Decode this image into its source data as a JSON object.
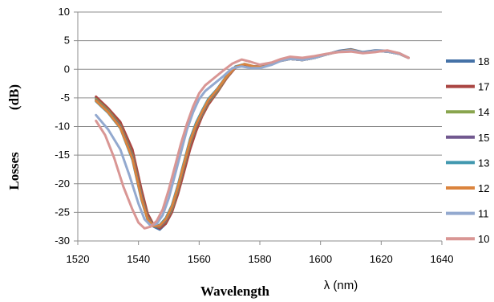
{
  "chart_data": {
    "type": "line",
    "title": "",
    "xlabel_main": "Wavelength",
    "xlabel_unit": "λ (nm)",
    "ylabel_main": "Losses",
    "ylabel_unit": "(dB)",
    "xlim": [
      1520,
      1640
    ],
    "ylim": [
      -30,
      10
    ],
    "x_ticks": [
      1520,
      1540,
      1560,
      1580,
      1600,
      1620,
      1640
    ],
    "y_ticks": [
      10,
      5,
      0,
      -5,
      -10,
      -15,
      -20,
      -25,
      -30
    ],
    "grid": "horizontal",
    "legend_position": "right",
    "series": [
      {
        "name": "18",
        "color": "#4572a7",
        "x": [
          1526,
          1530,
          1534,
          1538,
          1541,
          1543,
          1545,
          1547,
          1549,
          1551,
          1553,
          1555,
          1557,
          1559,
          1561,
          1563,
          1566,
          1569,
          1572,
          1575,
          1578,
          1581,
          1584,
          1587,
          1590,
          1594,
          1598,
          1602,
          1606,
          1610,
          1614,
          1618,
          1622,
          1626,
          1629
        ],
        "y": [
          -5.0,
          -7.0,
          -9.5,
          -14.5,
          -21.5,
          -25.5,
          -27.5,
          -28.0,
          -27.0,
          -25.0,
          -21.5,
          -17.5,
          -13.5,
          -10.5,
          -8.0,
          -6.0,
          -4.0,
          -1.5,
          0.3,
          0.8,
          0.5,
          0.5,
          1.0,
          1.5,
          1.8,
          1.6,
          2.0,
          2.6,
          3.2,
          3.5,
          3.0,
          3.3,
          3.2,
          2.8,
          2.0
        ]
      },
      {
        "name": "17",
        "color": "#aa4643",
        "x": [
          1526,
          1530,
          1534,
          1538,
          1541,
          1543,
          1545,
          1547,
          1549,
          1551,
          1553,
          1555,
          1557,
          1559,
          1561,
          1563,
          1566,
          1569,
          1572,
          1575,
          1578,
          1581,
          1584,
          1587,
          1590,
          1594,
          1598,
          1602,
          1606,
          1610,
          1614,
          1618,
          1622,
          1626,
          1629
        ],
        "y": [
          -4.8,
          -6.8,
          -9.2,
          -14.0,
          -21.0,
          -25.2,
          -27.2,
          -27.8,
          -27.0,
          -25.0,
          -21.8,
          -18.0,
          -14.0,
          -10.8,
          -8.2,
          -6.2,
          -4.0,
          -1.6,
          0.3,
          0.8,
          0.5,
          0.5,
          1.0,
          1.5,
          1.8,
          1.6,
          2.0,
          2.6,
          3.1,
          3.4,
          2.9,
          3.2,
          3.1,
          2.7,
          2.0
        ]
      },
      {
        "name": "14",
        "color": "#89a54e",
        "x": [
          1526,
          1530,
          1534,
          1538,
          1541,
          1543,
          1545,
          1547,
          1549,
          1551,
          1553,
          1555,
          1557,
          1559,
          1561,
          1563,
          1566,
          1569,
          1572,
          1575,
          1578,
          1581,
          1584,
          1587,
          1590,
          1594,
          1598,
          1602,
          1606,
          1610,
          1614,
          1618,
          1622,
          1626,
          1629
        ],
        "y": [
          -5.2,
          -7.2,
          -9.8,
          -15.0,
          -22.0,
          -25.8,
          -27.4,
          -27.5,
          -26.5,
          -24.5,
          -21.0,
          -17.0,
          -13.0,
          -10.0,
          -7.8,
          -5.8,
          -3.8,
          -1.4,
          0.4,
          0.9,
          0.5,
          0.4,
          1.0,
          1.5,
          1.8,
          1.6,
          2.0,
          2.6,
          3.1,
          3.4,
          2.9,
          3.2,
          3.1,
          2.7,
          2.0
        ]
      },
      {
        "name": "15",
        "color": "#71588f",
        "x": [
          1526,
          1530,
          1534,
          1538,
          1541,
          1543,
          1545,
          1547,
          1549,
          1551,
          1553,
          1555,
          1557,
          1559,
          1561,
          1563,
          1566,
          1569,
          1572,
          1575,
          1578,
          1581,
          1584,
          1587,
          1590,
          1594,
          1598,
          1602,
          1606,
          1610,
          1614,
          1618,
          1622,
          1626,
          1629
        ],
        "y": [
          -5.4,
          -7.4,
          -10.0,
          -15.3,
          -22.3,
          -26.0,
          -27.4,
          -27.4,
          -26.4,
          -24.2,
          -20.7,
          -16.7,
          -12.7,
          -9.8,
          -7.6,
          -5.6,
          -3.6,
          -1.3,
          0.4,
          0.9,
          0.5,
          0.4,
          1.0,
          1.5,
          1.8,
          1.6,
          2.0,
          2.6,
          3.1,
          3.4,
          2.9,
          3.2,
          3.1,
          2.7,
          2.0
        ]
      },
      {
        "name": "13",
        "color": "#4198af",
        "x": [
          1526,
          1530,
          1534,
          1538,
          1541,
          1543,
          1545,
          1547,
          1549,
          1551,
          1553,
          1555,
          1557,
          1559,
          1561,
          1563,
          1566,
          1569,
          1572,
          1575,
          1578,
          1581,
          1584,
          1587,
          1590,
          1594,
          1598,
          1602,
          1606,
          1610,
          1614,
          1618,
          1622,
          1626,
          1629
        ],
        "y": [
          -5.6,
          -7.6,
          -10.3,
          -15.8,
          -22.8,
          -26.3,
          -27.3,
          -27.2,
          -26.0,
          -23.8,
          -20.2,
          -16.2,
          -12.2,
          -9.3,
          -7.2,
          -5.2,
          -3.4,
          -1.2,
          0.5,
          0.9,
          0.5,
          0.4,
          1.0,
          1.5,
          1.8,
          1.6,
          2.0,
          2.6,
          3.1,
          3.4,
          2.9,
          3.2,
          3.1,
          2.7,
          2.0
        ]
      },
      {
        "name": "12",
        "color": "#db843d",
        "x": [
          1526,
          1530,
          1534,
          1538,
          1541,
          1543,
          1545,
          1547,
          1549,
          1551,
          1553,
          1555,
          1557,
          1559,
          1561,
          1563,
          1566,
          1569,
          1572,
          1575,
          1578,
          1581,
          1584,
          1587,
          1590,
          1594,
          1598,
          1602,
          1606,
          1610,
          1614,
          1618,
          1622,
          1626,
          1629
        ],
        "y": [
          -5.5,
          -7.5,
          -10.2,
          -15.6,
          -22.6,
          -26.2,
          -27.4,
          -27.3,
          -26.2,
          -24.0,
          -20.5,
          -16.5,
          -12.5,
          -9.6,
          -7.4,
          -5.4,
          -3.5,
          -1.3,
          0.4,
          0.9,
          0.5,
          0.4,
          1.0,
          1.5,
          1.8,
          1.6,
          2.0,
          2.6,
          3.1,
          3.4,
          2.9,
          3.2,
          3.1,
          2.7,
          2.0
        ]
      },
      {
        "name": "11",
        "color": "#93a9cf",
        "x": [
          1526,
          1530,
          1534,
          1537,
          1540,
          1542,
          1544,
          1546,
          1548,
          1550,
          1552,
          1554,
          1556,
          1558,
          1560,
          1562,
          1565,
          1568,
          1571,
          1574,
          1577,
          1580,
          1584,
          1587,
          1590,
          1594,
          1598,
          1602,
          1606,
          1610,
          1614,
          1618,
          1622,
          1626,
          1629
        ],
        "y": [
          -8.0,
          -10.5,
          -14.0,
          -18.5,
          -23.5,
          -26.2,
          -27.3,
          -27.0,
          -25.5,
          -22.5,
          -18.5,
          -14.5,
          -10.5,
          -7.5,
          -5.2,
          -3.8,
          -2.5,
          -1.2,
          0.2,
          0.5,
          0.2,
          0.2,
          0.8,
          1.5,
          1.8,
          1.6,
          2.0,
          2.6,
          3.1,
          3.3,
          2.9,
          3.2,
          3.1,
          2.7,
          2.0
        ]
      },
      {
        "name": "10",
        "color": "#d99694",
        "x": [
          1526,
          1529,
          1532,
          1535,
          1538,
          1540,
          1542,
          1544,
          1546,
          1548,
          1550,
          1552,
          1554,
          1556,
          1558,
          1560,
          1562,
          1565,
          1568,
          1571,
          1574,
          1577,
          1580,
          1584,
          1587,
          1590,
          1594,
          1598,
          1602,
          1606,
          1610,
          1614,
          1618,
          1622,
          1626,
          1629
        ],
        "y": [
          -9.0,
          -11.5,
          -15.5,
          -20.5,
          -24.5,
          -26.8,
          -27.8,
          -27.5,
          -26.5,
          -24.5,
          -21.0,
          -17.0,
          -13.0,
          -9.5,
          -6.5,
          -4.2,
          -2.8,
          -1.5,
          -0.2,
          1.0,
          1.7,
          1.3,
          0.8,
          1.2,
          1.8,
          2.2,
          2.0,
          2.3,
          2.7,
          3.0,
          3.1,
          2.8,
          3.0,
          3.3,
          2.8,
          2.0
        ]
      }
    ]
  }
}
